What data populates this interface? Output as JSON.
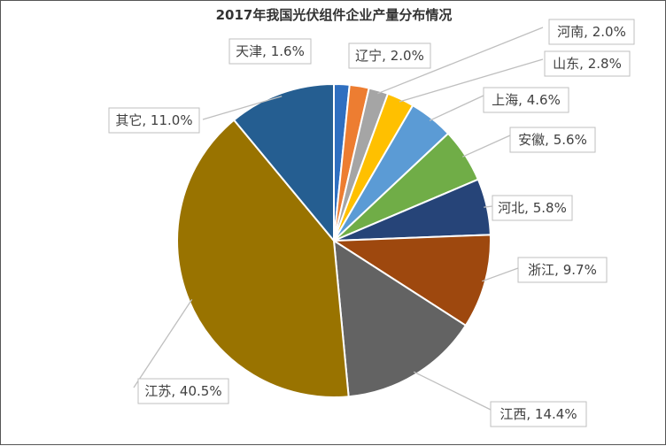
{
  "chart_data": {
    "type": "pie",
    "title": "2017年我国光伏组件企业产量分布情况",
    "slices": [
      {
        "label": "天津",
        "value": 1.6,
        "display": "天津, 1.6%",
        "color": "#2f6fc0"
      },
      {
        "label": "辽宁",
        "value": 2.0,
        "display": "辽宁, 2.0%",
        "color": "#ed7d31"
      },
      {
        "label": "河南",
        "value": 2.0,
        "display": "河南, 2.0%",
        "color": "#a5a5a5"
      },
      {
        "label": "山东",
        "value": 2.8,
        "display": "山东, 2.8%",
        "color": "#ffc000"
      },
      {
        "label": "上海",
        "value": 4.6,
        "display": "上海, 4.6%",
        "color": "#5b9bd5"
      },
      {
        "label": "安徽",
        "value": 5.6,
        "display": "安徽, 5.6%",
        "color": "#70ad47"
      },
      {
        "label": "河北",
        "value": 5.8,
        "display": "河北, 5.8%",
        "color": "#264478"
      },
      {
        "label": "浙江",
        "value": 9.7,
        "display": "浙江, 9.7%",
        "color": "#9e480e"
      },
      {
        "label": "江西",
        "value": 14.4,
        "display": "江西, 14.4%",
        "color": "#636363"
      },
      {
        "label": "江苏",
        "value": 40.5,
        "display": "江苏, 40.5%",
        "color": "#997300"
      },
      {
        "label": "其它",
        "value": 11.0,
        "display": "其它, 11.0%",
        "color": "#255e91"
      }
    ],
    "legend": "none"
  }
}
